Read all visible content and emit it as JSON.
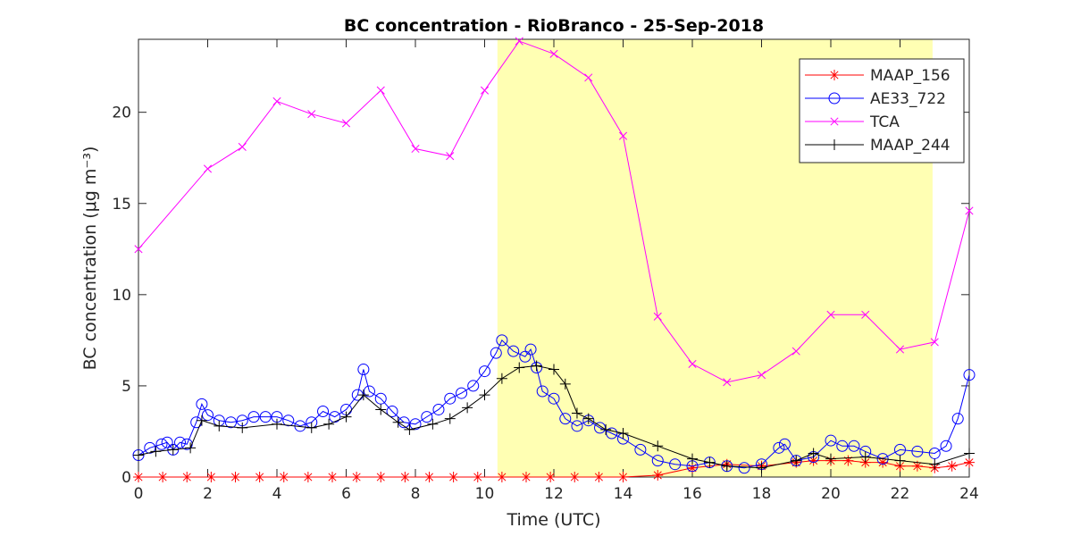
{
  "chart_data": {
    "type": "line",
    "title": "BC concentration  - RioBranco - 25-Sep-2018",
    "x_label": "Time (UTC)",
    "y_label": "BC concentration (μg m⁻³)",
    "xlim": [
      0,
      24
    ],
    "ylim": [
      0,
      24
    ],
    "xticks": [
      0,
      2,
      4,
      6,
      8,
      10,
      12,
      14,
      16,
      18,
      20,
      22,
      24
    ],
    "yticks": [
      0,
      5,
      10,
      15,
      20
    ],
    "grid": false,
    "legend": "upper right",
    "highlight_xrange": [
      10.37,
      22.94
    ],
    "highlight_color": "#ffffb3",
    "series": [
      {
        "name": "MAAP_156",
        "color": "#ff0000",
        "marker": "star",
        "x": [
          0,
          0.7,
          1.4,
          2.1,
          2.8,
          3.5,
          4.2,
          4.9,
          5.6,
          6.3,
          7,
          7.7,
          8.4,
          9.1,
          9.8,
          10.5,
          11.2,
          11.9,
          12.6,
          13.3,
          14,
          15,
          16,
          17,
          18,
          19,
          19.5,
          20,
          20.5,
          21,
          21.5,
          22,
          22.5,
          23,
          23.5,
          24
        ],
        "values": [
          0,
          0,
          0,
          0,
          0,
          0,
          0,
          0,
          0,
          0,
          0,
          0,
          0,
          0,
          0,
          0,
          0,
          0,
          0,
          0,
          0,
          0.1,
          0.5,
          0.7,
          0.6,
          0.8,
          0.9,
          0.9,
          0.9,
          0.8,
          0.8,
          0.6,
          0.6,
          0.5,
          0.6,
          0.8
        ]
      },
      {
        "name": "AE33_722",
        "color": "#0000ff",
        "marker": "circle",
        "x": [
          0,
          0.33,
          0.67,
          0.83,
          1,
          1.2,
          1.4,
          1.67,
          1.83,
          2,
          2.33,
          2.67,
          3,
          3.33,
          3.67,
          4,
          4.33,
          4.67,
          5,
          5.33,
          5.67,
          6,
          6.33,
          6.5,
          6.67,
          7,
          7.33,
          7.67,
          8,
          8.33,
          8.67,
          9,
          9.33,
          9.67,
          10,
          10.33,
          10.5,
          10.83,
          11.17,
          11.33,
          11.5,
          11.67,
          12,
          12.33,
          12.67,
          13,
          13.33,
          13.67,
          14,
          14.5,
          15,
          15.5,
          16,
          16.5,
          17,
          17.5,
          18,
          18.5,
          18.67,
          19,
          19.5,
          20,
          20.33,
          20.67,
          21,
          21.5,
          22,
          22.5,
          23,
          23.33,
          23.67,
          24
        ],
        "values": [
          1.2,
          1.6,
          1.8,
          1.9,
          1.5,
          1.9,
          1.8,
          3.0,
          4.0,
          3.4,
          3.1,
          3.0,
          3.1,
          3.3,
          3.3,
          3.3,
          3.1,
          2.8,
          3.0,
          3.6,
          3.3,
          3.7,
          4.5,
          5.9,
          4.7,
          4.3,
          3.6,
          3.0,
          2.9,
          3.3,
          3.7,
          4.3,
          4.6,
          5.0,
          5.8,
          6.8,
          7.5,
          6.9,
          6.6,
          7.0,
          6.0,
          4.7,
          4.3,
          3.2,
          2.8,
          3.1,
          2.7,
          2.4,
          2.1,
          1.5,
          0.9,
          0.7,
          0.6,
          0.8,
          0.6,
          0.5,
          0.7,
          1.6,
          1.8,
          0.9,
          1.1,
          2.0,
          1.7,
          1.7,
          1.4,
          1.0,
          1.5,
          1.4,
          1.3,
          1.7,
          3.2,
          5.6
        ]
      },
      {
        "name": "TCA",
        "color": "#ff00ff",
        "marker": "x",
        "x": [
          0,
          2,
          3,
          4,
          5,
          6,
          7,
          8,
          9,
          10,
          11,
          12,
          13,
          14,
          15,
          16,
          17,
          18,
          19,
          20,
          21,
          22,
          23,
          24
        ],
        "values": [
          12.5,
          16.9,
          18.1,
          20.6,
          19.9,
          19.4,
          21.2,
          18.0,
          17.6,
          21.2,
          23.9,
          23.2,
          21.9,
          18.7,
          8.8,
          6.2,
          5.2,
          5.6,
          6.9,
          8.9,
          8.9,
          7.0,
          7.4,
          14.6
        ]
      },
      {
        "name": "MAAP_244",
        "color": "#000000",
        "marker": "plus",
        "x": [
          0,
          0.5,
          1,
          1.5,
          1.83,
          2.33,
          3,
          4,
          5,
          5.5,
          6,
          6.5,
          7,
          7.5,
          7.83,
          8.5,
          9,
          9.5,
          10,
          10.5,
          11,
          11.5,
          12,
          12.33,
          12.67,
          13,
          13.5,
          14,
          15,
          16,
          16.5,
          17,
          18,
          19,
          19.5,
          20,
          21,
          22,
          23,
          24
        ],
        "values": [
          1.2,
          1.4,
          1.5,
          1.6,
          3.1,
          2.8,
          2.7,
          2.9,
          2.7,
          2.9,
          3.3,
          4.5,
          3.7,
          3.0,
          2.6,
          2.9,
          3.2,
          3.8,
          4.5,
          5.4,
          6.0,
          6.1,
          5.9,
          5.1,
          3.5,
          3.2,
          2.6,
          2.4,
          1.7,
          1.0,
          0.8,
          0.6,
          0.5,
          0.9,
          1.3,
          1.0,
          1.1,
          0.9,
          0.7,
          1.3
        ]
      }
    ]
  }
}
